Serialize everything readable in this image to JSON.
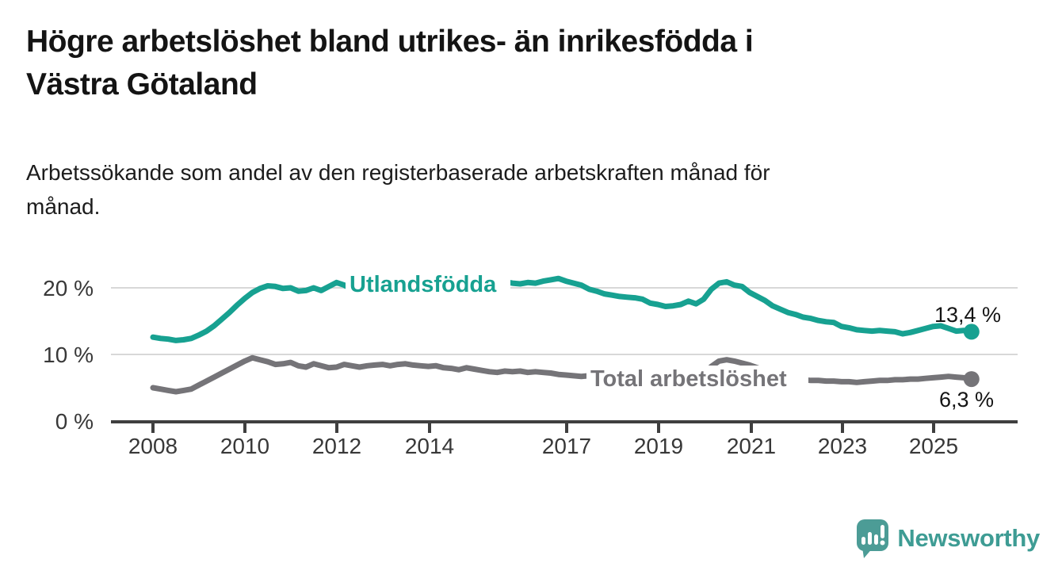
{
  "header": {
    "title": "Högre arbetslöshet bland utrikes- än inrikesfödda i\nVästra Götaland",
    "subtitle": "Arbetssökande som andel av den registerbaserade arbetskraften månad för\nmånad."
  },
  "chart_data": {
    "type": "line",
    "title": "Högre arbetslöshet bland utrikes- än inrikesfödda i Västra Götaland",
    "subtitle": "Arbetssökande som andel av den registerbaserade arbetskraften månad för månad.",
    "unit": "%",
    "grid": "horizontal-gridlines-at-10-and-20",
    "legend_position": "inline-labels-on-lines",
    "end_dots": true,
    "x_start": 2008,
    "x_step_years": 0.1667,
    "xlim": [
      2007.4,
      2026.2
    ],
    "ylim": [
      0,
      23.5
    ],
    "x_tick_labels": [
      "2008",
      "2010",
      "2012",
      "2014",
      "2017",
      "2019",
      "2021",
      "2023",
      "2025"
    ],
    "y_tick_labels": [
      "20 %",
      "10 %",
      "0 %"
    ],
    "y_ticks": [
      20,
      10,
      0
    ],
    "series": [
      {
        "name": "Utlandsfödda",
        "color": "#17A191",
        "end_value": 13.4,
        "end_label": "13,4 %",
        "values": [
          12.6,
          12.4,
          12.3,
          12.1,
          12.2,
          12.4,
          12.9,
          13.5,
          14.3,
          15.3,
          16.3,
          17.4,
          18.4,
          19.3,
          19.9,
          20.3,
          20.2,
          19.9,
          20.0,
          19.5,
          19.6,
          20.0,
          19.6,
          20.2,
          20.8,
          20.4,
          19.8,
          19.5,
          20.0,
          20.3,
          20.6,
          20.2,
          20.4,
          20.3,
          20.5,
          20.4,
          20.6,
          20.4,
          20.5,
          20.3,
          20.4,
          20.5,
          20.6,
          20.4,
          20.5,
          20.7,
          20.9,
          20.7,
          20.6,
          20.8,
          20.7,
          21.0,
          21.2,
          21.4,
          21.0,
          20.7,
          20.4,
          19.8,
          19.5,
          19.1,
          18.9,
          18.7,
          18.6,
          18.5,
          18.3,
          17.7,
          17.5,
          17.2,
          17.3,
          17.5,
          18.0,
          17.6,
          18.3,
          19.8,
          20.7,
          20.9,
          20.4,
          20.2,
          19.3,
          18.7,
          18.1,
          17.3,
          16.8,
          16.3,
          16.0,
          15.6,
          15.4,
          15.1,
          14.9,
          14.8,
          14.2,
          14.0,
          13.7,
          13.6,
          13.5,
          13.6,
          13.5,
          13.4,
          13.1,
          13.3,
          13.6,
          13.9,
          14.2,
          14.3,
          13.9,
          13.5,
          13.6,
          13.4
        ]
      },
      {
        "name": "Total arbetslöshet",
        "color": "#757478",
        "end_value": 6.3,
        "end_label": "6,3 %",
        "values": [
          5.0,
          4.8,
          4.6,
          4.4,
          4.6,
          4.8,
          5.4,
          6.0,
          6.6,
          7.2,
          7.8,
          8.4,
          9.0,
          9.5,
          9.2,
          8.9,
          8.5,
          8.6,
          8.8,
          8.3,
          8.1,
          8.6,
          8.3,
          8.0,
          8.1,
          8.5,
          8.3,
          8.1,
          8.3,
          8.4,
          8.5,
          8.3,
          8.5,
          8.6,
          8.4,
          8.3,
          8.2,
          8.3,
          8.0,
          7.9,
          7.7,
          8.0,
          7.8,
          7.6,
          7.4,
          7.3,
          7.5,
          7.4,
          7.5,
          7.3,
          7.4,
          7.3,
          7.2,
          7.0,
          6.9,
          6.8,
          6.7,
          6.8,
          6.9,
          6.8,
          6.7,
          6.6,
          6.6,
          6.5,
          6.4,
          6.3,
          6.3,
          6.4,
          6.5,
          6.6,
          6.7,
          6.8,
          7.0,
          8.2,
          9.0,
          9.2,
          9.0,
          8.7,
          8.4,
          8.0,
          7.6,
          7.2,
          6.9,
          6.6,
          6.4,
          6.2,
          6.1,
          6.1,
          6.0,
          6.0,
          5.9,
          5.9,
          5.8,
          5.9,
          6.0,
          6.1,
          6.1,
          6.2,
          6.2,
          6.3,
          6.3,
          6.4,
          6.5,
          6.6,
          6.7,
          6.6,
          6.5,
          6.3
        ]
      }
    ]
  },
  "footer": {
    "brand": "Newsworthy",
    "brand_color": "#3E9C94",
    "logo_icon": "newsworthy-speech-bubble-barchart-icon"
  }
}
